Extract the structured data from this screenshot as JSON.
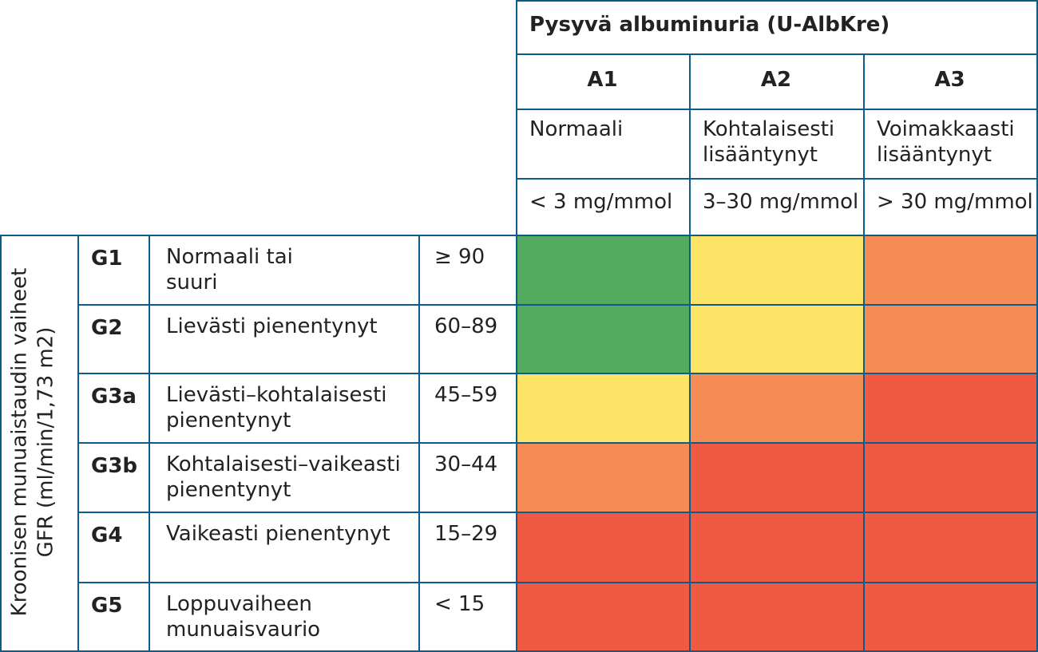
{
  "header": {
    "title": "Pysyvä albuminuria (U-AlbKre)",
    "columns": [
      {
        "code": "A1",
        "desc": "Normaali",
        "range": "< 3 mg/mmol"
      },
      {
        "code": "A2",
        "desc": "Kohtalaisesti\nlisääntynyt",
        "range": "3–30 mg/mmol"
      },
      {
        "code": "A3",
        "desc": "Voimakkaasti\nlisääntynyt",
        "range": "> 30 mg/mmol"
      }
    ]
  },
  "side_label": "Kroonisen munuaistaudin vaiheet\nGFR (ml/min/1,73 m2)",
  "rows": [
    {
      "code": "G1",
      "desc": "Normaali tai\nsuuri",
      "gfr": "≥ 90",
      "risk": [
        "green",
        "yellow",
        "orange"
      ]
    },
    {
      "code": "G2",
      "desc": "Lievästi pienentynyt",
      "gfr": "60–89",
      "risk": [
        "green",
        "yellow",
        "orange"
      ]
    },
    {
      "code": "G3a",
      "desc": "Lievästi–kohtalaisesti\npienentynyt",
      "gfr": "45–59",
      "risk": [
        "yellow",
        "orange",
        "red"
      ]
    },
    {
      "code": "G3b",
      "desc": "Kohtalaisesti–vaikeasti\npienentynyt",
      "gfr": "30–44",
      "risk": [
        "orange",
        "red",
        "red"
      ]
    },
    {
      "code": "G4",
      "desc": "Vaikeasti pienentynyt",
      "gfr": "15–29",
      "risk": [
        "red",
        "red",
        "red"
      ]
    },
    {
      "code": "G5",
      "desc": "Loppuvaiheen\nmunuaisvaurio",
      "gfr": "< 15",
      "risk": [
        "red",
        "red",
        "red"
      ]
    }
  ],
  "colors": {
    "border": "#0c5b8a",
    "green": "#52ab5e",
    "yellow": "#fde467",
    "orange": "#f58c55",
    "red": "#f05a42"
  }
}
